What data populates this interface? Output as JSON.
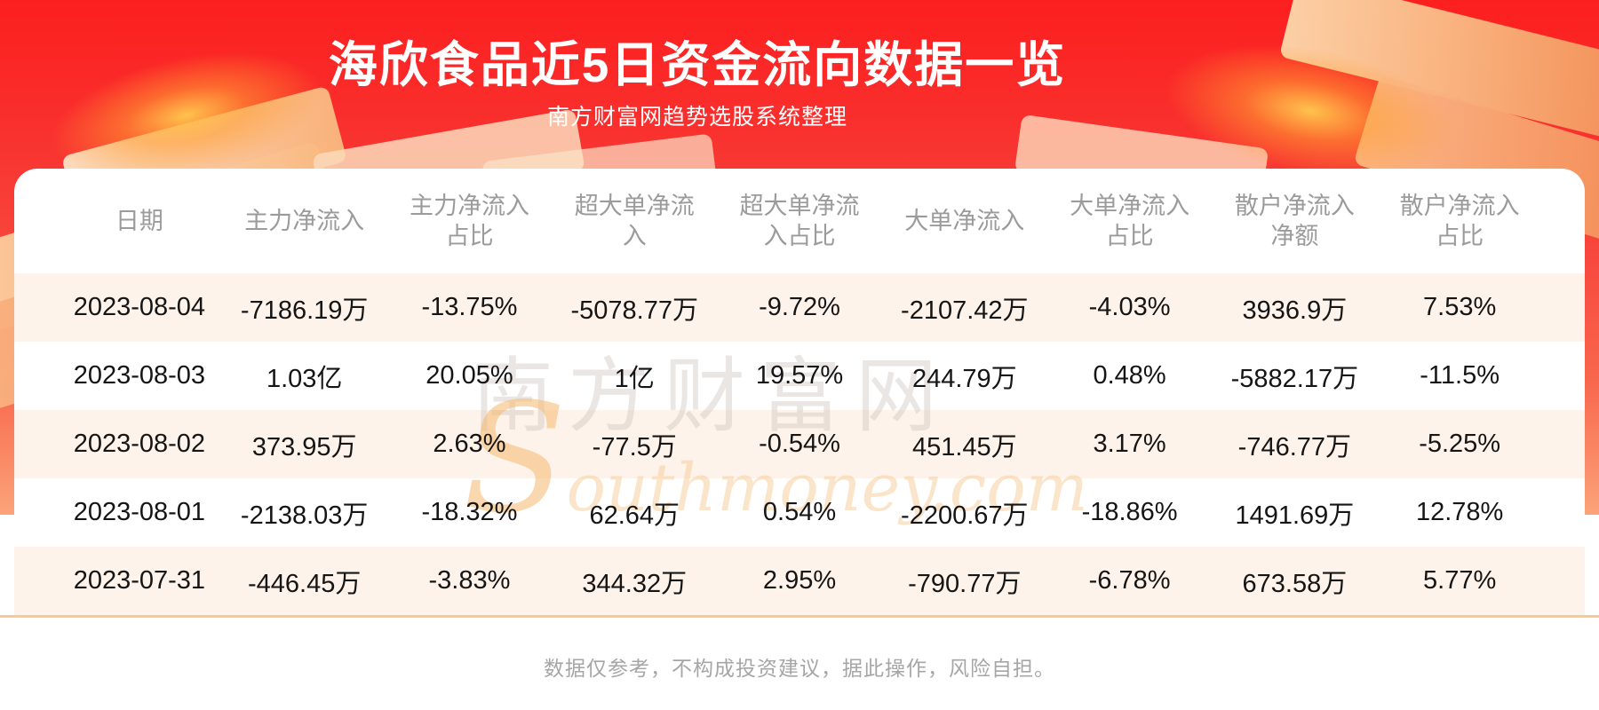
{
  "banner": {
    "title": "海欣食品近5日资金流向数据一览",
    "subtitle": "南方财富网趋势选股系统整理"
  },
  "table": {
    "columns": [
      "日期",
      "主力净流入",
      "主力净流入\n占比",
      "超大单净流\n入",
      "超大单净流\n入占比",
      "大单净流入",
      "大单净流入\n占比",
      "散户净流入\n净额",
      "散户净流入\n占比"
    ],
    "rows": [
      [
        "2023-08-04",
        "-7186.19万",
        "-13.75%",
        "-5078.77万",
        "-9.72%",
        "-2107.42万",
        "-4.03%",
        "3936.9万",
        "7.53%"
      ],
      [
        "2023-08-03",
        "1.03亿",
        "20.05%",
        "1亿",
        "19.57%",
        "244.79万",
        "0.48%",
        "-5882.17万",
        "-11.5%"
      ],
      [
        "2023-08-02",
        "373.95万",
        "2.63%",
        "-77.5万",
        "-0.54%",
        "451.45万",
        "3.17%",
        "-746.77万",
        "-5.25%"
      ],
      [
        "2023-08-01",
        "-2138.03万",
        "-18.32%",
        "62.64万",
        "0.54%",
        "-2200.67万",
        "-18.86%",
        "1491.69万",
        "12.78%"
      ],
      [
        "2023-07-31",
        "-446.45万",
        "-3.83%",
        "344.32万",
        "2.95%",
        "-790.77万",
        "-6.78%",
        "673.58万",
        "5.77%"
      ]
    ]
  },
  "watermark": {
    "cn": "南方财富网",
    "en": "Southmoney.com"
  },
  "footer": {
    "disclaimer": "数据仅参考，不构成投资建议，据此操作，风险自担。"
  },
  "chart_data": {
    "type": "table",
    "title": "海欣食品近5日资金流向数据一览",
    "subtitle": "南方财富网趋势选股系统整理",
    "columns": [
      "日期",
      "主力净流入",
      "主力净流入占比",
      "超大单净流入",
      "超大单净流入占比",
      "大单净流入",
      "大单净流入占比",
      "散户净流入净额",
      "散户净流入占比"
    ],
    "rows": [
      [
        "2023-08-04",
        "-7186.19万",
        "-13.75%",
        "-5078.77万",
        "-9.72%",
        "-2107.42万",
        "-4.03%",
        "3936.9万",
        "7.53%"
      ],
      [
        "2023-08-03",
        "1.03亿",
        "20.05%",
        "1亿",
        "19.57%",
        "244.79万",
        "0.48%",
        "-5882.17万",
        "-11.5%"
      ],
      [
        "2023-08-02",
        "373.95万",
        "2.63%",
        "-77.5万",
        "-0.54%",
        "451.45万",
        "3.17%",
        "-746.77万",
        "-5.25%"
      ],
      [
        "2023-08-01",
        "-2138.03万",
        "-18.32%",
        "62.64万",
        "0.54%",
        "-2200.67万",
        "-18.86%",
        "1491.69万",
        "12.78%"
      ],
      [
        "2023-07-31",
        "-446.45万",
        "-3.83%",
        "344.32万",
        "2.95%",
        "-790.77万",
        "-6.78%",
        "673.58万",
        "5.77%"
      ]
    ]
  },
  "colors": {
    "red_top": "#fc1f1f",
    "red_mid": "#f7463c",
    "red_bottom": "#fba379",
    "title_text": "#ffffff",
    "card_bg": "#ffffff",
    "header_text": "#9b9b9b",
    "cell_text": "#151515",
    "band_bg": "#fdf3ea",
    "divider": "#f6c98e",
    "footer_text": "#a6a6a6",
    "decor_peach": "#f9b27e",
    "decor_orange": "#f2884f",
    "decor_pale": "#fcd9ba",
    "glow_gold": "#ffc24d",
    "watermark_cn": "#cfc5bf",
    "watermark_en": "#f7cf9f"
  }
}
